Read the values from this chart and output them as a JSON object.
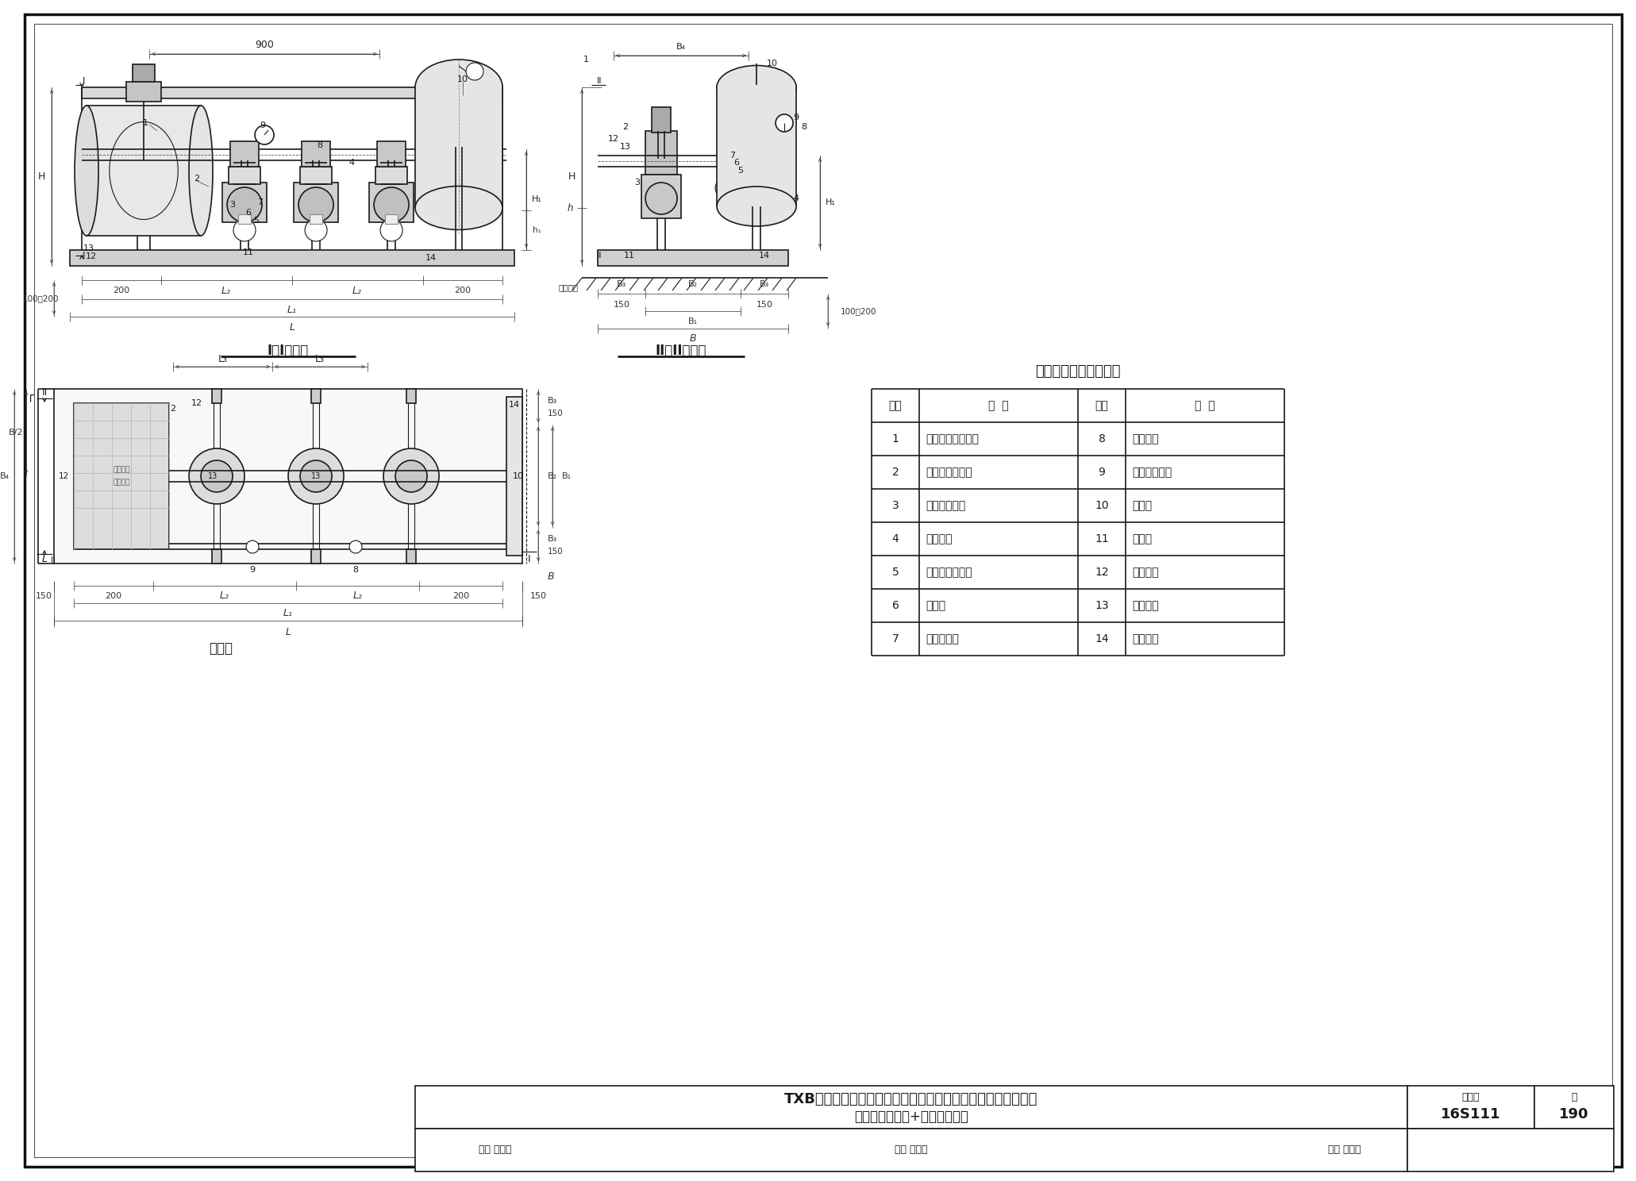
{
  "bg": "#ffffff",
  "lc": "#1a1a1a",
  "section1_title": "I－I剪面图",
  "section2_title": "II－II剪面图",
  "plan_title": "平面图",
  "table_title": "设备部件及安装名称表",
  "table_headers": [
    "编号",
    "名  称",
    "编号",
    "名  称"
  ],
  "table_data": [
    [
      "1",
      "叠片同步自吸装置",
      "8",
      "出水总管"
    ],
    [
      "2",
      "自吸快速排气管",
      "9",
      "电接点压力表"
    ],
    [
      "3",
      "立式单级水泵",
      "10",
      "气压罐"
    ],
    [
      "4",
      "管道支架",
      "11",
      "减振器"
    ],
    [
      "5",
      "可曲挠橡胶接头",
      "12",
      "设备底座"
    ],
    [
      "6",
      "止回阀",
      "13",
      "膨脹螺栓"
    ],
    [
      "7",
      "出水管阀门",
      "14",
      "设备基础"
    ]
  ],
  "title_main": "TXB系列微机控制叠片同步自吸变频调速供水设备外形及安装图",
  "title_sub": "（一用一备主泵+小流量辅泵）",
  "fig_label": "图集号",
  "fig_num": "16S111",
  "page_label": "页",
  "page_num": "190",
  "audit": "审核 罗定元",
  "check": "校对 尹忠珍",
  "design": "设计 陈加兵"
}
